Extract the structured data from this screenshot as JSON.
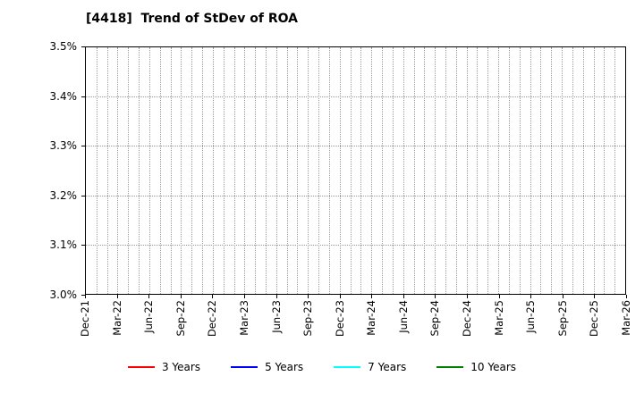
{
  "title": "[4418]  Trend of StDev of ROA",
  "chart_data": {
    "type": "line",
    "title": "[4418]  Trend of StDev of ROA",
    "xlabel": "",
    "ylabel": "",
    "ylim": [
      3.0,
      3.5
    ],
    "y_ticks": [
      3.0,
      3.1,
      3.2,
      3.3,
      3.4,
      3.5
    ],
    "y_tick_labels": [
      "3.0%",
      "3.1%",
      "3.2%",
      "3.3%",
      "3.4%",
      "3.5%"
    ],
    "x_tick_labels": [
      "Dec-21",
      "Mar-22",
      "Jun-22",
      "Sep-22",
      "Dec-22",
      "Mar-23",
      "Jun-23",
      "Sep-23",
      "Dec-23",
      "Mar-24",
      "Jun-24",
      "Sep-24",
      "Dec-24",
      "Mar-25",
      "Jun-25",
      "Sep-25",
      "Dec-25",
      "Mar-26"
    ],
    "months_total": 52,
    "label_every_months": 3,
    "grid": true,
    "grid_style": "dotted",
    "grid_color": "#999999",
    "border_color": "#000000",
    "background_color": "#ffffff",
    "legend_position": "bottom",
    "series": [
      {
        "name": "3 Years",
        "color": "#ff0000",
        "values": []
      },
      {
        "name": "5 Years",
        "color": "#0000ff",
        "values": []
      },
      {
        "name": "7 Years",
        "color": "#00ffff",
        "values": []
      },
      {
        "name": "10 Years",
        "color": "#008000",
        "values": []
      }
    ],
    "note": "no data series visible in plot area"
  }
}
